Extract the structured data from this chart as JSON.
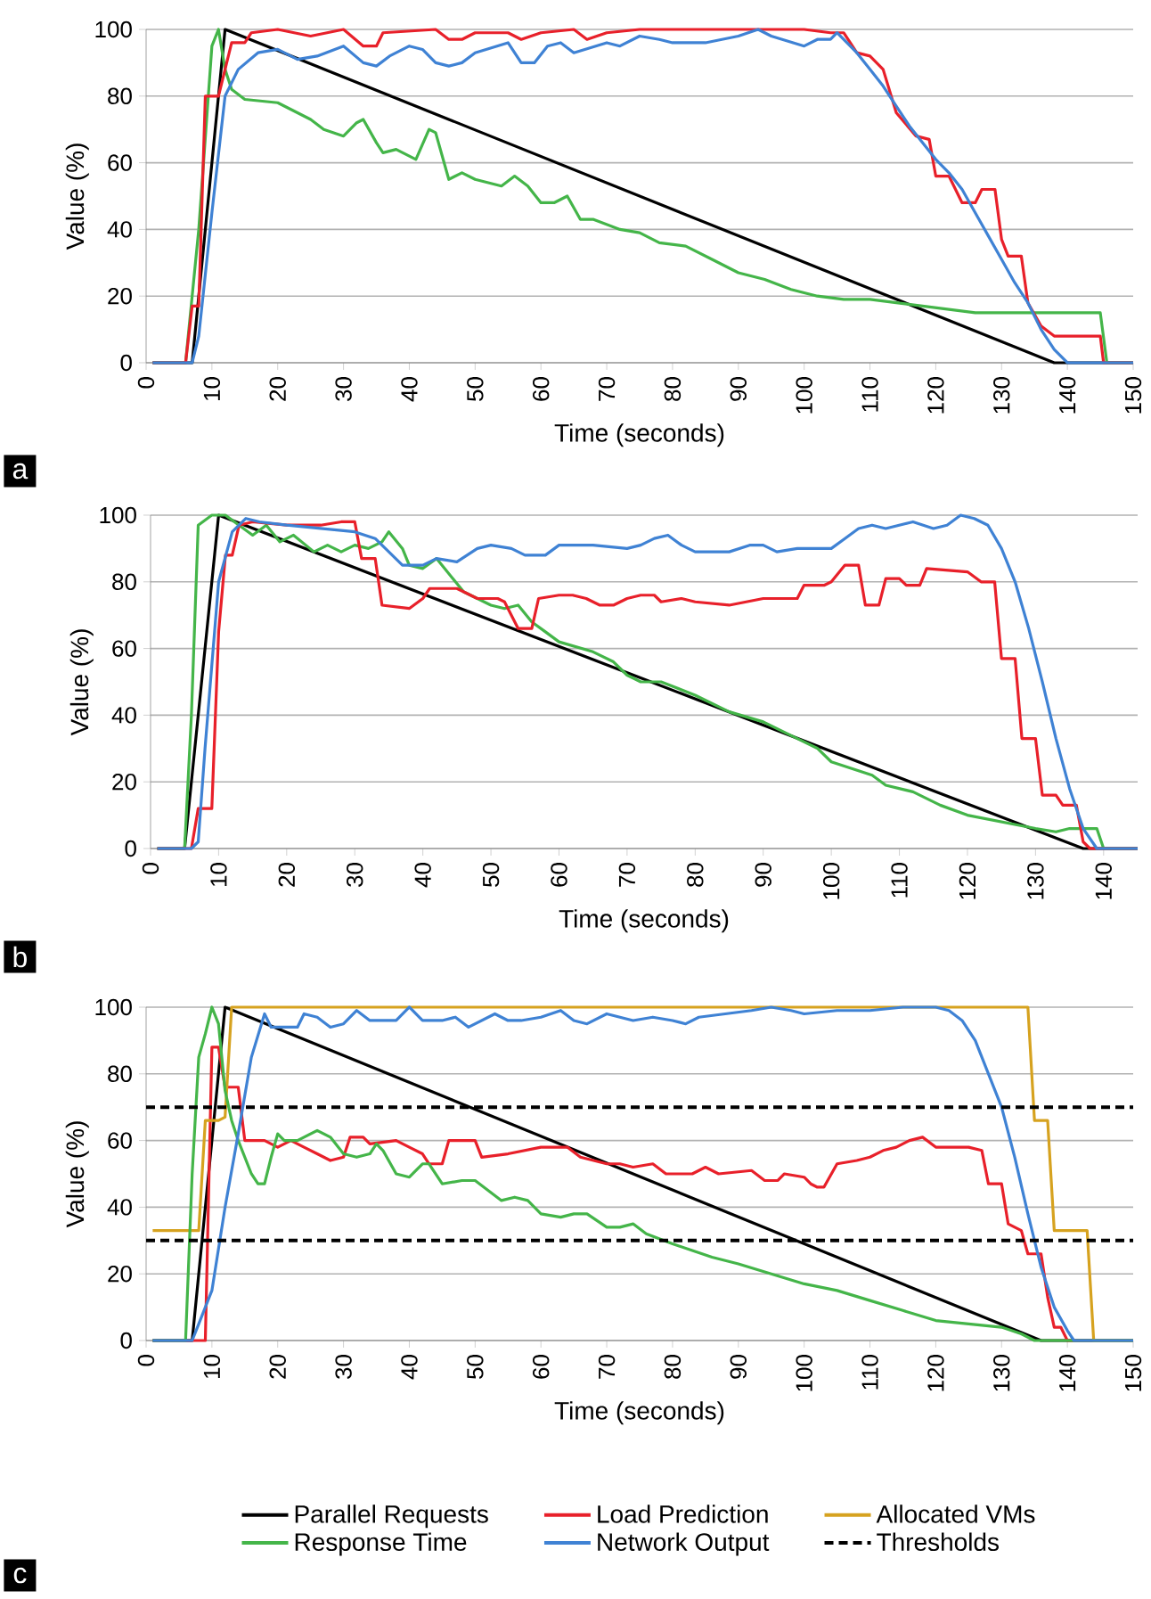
{
  "chart_data": [
    {
      "type": "line",
      "xlabel": "Time (seconds)",
      "ylabel": "Value (%)",
      "xlim": [
        0,
        150
      ],
      "ylim": [
        0,
        100
      ],
      "xticks": [
        0,
        10,
        20,
        30,
        40,
        50,
        60,
        70,
        80,
        90,
        100,
        110,
        120,
        130,
        140,
        150
      ],
      "yticks": [
        0,
        20,
        40,
        60,
        80,
        100
      ],
      "grid": "y",
      "annotations": [
        "a"
      ],
      "series": [
        {
          "color": "#000000",
          "x": [
            1,
            7,
            12,
            138,
            150
          ],
          "values": [
            0,
            0,
            100,
            0,
            0
          ]
        },
        {
          "color": "#44b549",
          "x": [
            1,
            6,
            8,
            10,
            11,
            12,
            13,
            15,
            20,
            23,
            25,
            27,
            30,
            32,
            33,
            35,
            36,
            38,
            41,
            43,
            44,
            46,
            48,
            50,
            54,
            56,
            58,
            60,
            62,
            64,
            66,
            68,
            72,
            75,
            78,
            82,
            86,
            90,
            94,
            98,
            102,
            106,
            110,
            114,
            118,
            122,
            126,
            130,
            135,
            145,
            146,
            150
          ],
          "values": [
            0,
            0,
            40,
            95,
            100,
            88,
            82,
            79,
            78,
            75,
            73,
            70,
            68,
            72,
            73,
            66,
            63,
            64,
            61,
            70,
            69,
            55,
            57,
            55,
            53,
            56,
            53,
            48,
            48,
            50,
            43,
            43,
            40,
            39,
            36,
            35,
            31,
            27,
            25,
            22,
            20,
            19,
            19,
            18,
            17,
            16,
            15,
            15,
            15,
            15,
            0,
            0
          ]
        },
        {
          "color": "#e8202a",
          "x": [
            1,
            6,
            7,
            8,
            9,
            11,
            13,
            15,
            16,
            20,
            25,
            30,
            33,
            35,
            36,
            44,
            46,
            48,
            50,
            55,
            57,
            60,
            65,
            67,
            70,
            75,
            100,
            104,
            106,
            108,
            110,
            112,
            114,
            117,
            119,
            120,
            122,
            124,
            126,
            127,
            129,
            130,
            131,
            133,
            134,
            136,
            138,
            145,
            145.5,
            150
          ],
          "values": [
            0,
            0,
            17,
            17,
            80,
            80,
            96,
            96,
            99,
            100,
            98,
            100,
            95,
            95,
            99,
            100,
            97,
            97,
            99,
            99,
            97,
            99,
            100,
            97,
            99,
            100,
            100,
            99,
            99,
            93,
            92,
            88,
            75,
            68,
            67,
            56,
            56,
            48,
            48,
            52,
            52,
            37,
            32,
            32,
            18,
            11,
            8,
            8,
            0,
            0
          ]
        },
        {
          "color": "#3f82d4",
          "x": [
            1,
            7,
            8,
            10,
            12,
            14,
            17,
            20,
            23,
            26,
            30,
            33,
            35,
            37,
            40,
            42,
            44,
            46,
            48,
            50,
            55,
            57,
            59,
            61,
            63,
            65,
            70,
            72,
            75,
            78,
            80,
            85,
            90,
            93,
            95,
            100,
            102,
            104,
            105,
            108,
            110,
            112,
            114,
            116,
            118,
            120,
            122,
            124,
            126,
            128,
            130,
            132,
            134,
            136,
            138,
            140,
            150
          ],
          "values": [
            0,
            0,
            8,
            45,
            80,
            88,
            93,
            94,
            91,
            92,
            95,
            90,
            89,
            92,
            95,
            94,
            90,
            89,
            90,
            93,
            96,
            90,
            90,
            95,
            96,
            93,
            96,
            95,
            98,
            97,
            96,
            96,
            98,
            100,
            98,
            95,
            97,
            97,
            99,
            93,
            88,
            83,
            77,
            71,
            66,
            61,
            57,
            52,
            45,
            38,
            31,
            24,
            18,
            10,
            4,
            0,
            0
          ]
        }
      ]
    },
    {
      "type": "line",
      "xlabel": "Time (seconds)",
      "ylabel": "Value (%)",
      "xlim": [
        0,
        145
      ],
      "ylim": [
        0,
        100
      ],
      "xticks": [
        0,
        10,
        20,
        30,
        40,
        50,
        60,
        70,
        80,
        90,
        100,
        110,
        120,
        130,
        140
      ],
      "yticks": [
        0,
        20,
        40,
        60,
        80,
        100
      ],
      "grid": "y",
      "annotations": [
        "b"
      ],
      "series": [
        {
          "color": "#000000",
          "x": [
            1,
            5,
            10,
            137,
            145
          ],
          "values": [
            0,
            0,
            100,
            0,
            0
          ]
        },
        {
          "color": "#44b549",
          "x": [
            1,
            5,
            6,
            7,
            9,
            11,
            13,
            15,
            17,
            19,
            21,
            24,
            26,
            28,
            30,
            32,
            34,
            35,
            37,
            38,
            40,
            42,
            44,
            46,
            50,
            52,
            54,
            56,
            58,
            60,
            65,
            68,
            70,
            72,
            75,
            80,
            85,
            90,
            95,
            98,
            100,
            103,
            106,
            108,
            112,
            116,
            120,
            125,
            130,
            133,
            135,
            139,
            140,
            145
          ],
          "values": [
            0,
            0,
            40,
            97,
            100,
            100,
            97,
            94,
            97,
            92,
            94,
            89,
            91,
            89,
            91,
            90,
            92,
            95,
            90,
            85,
            84,
            87,
            82,
            77,
            73,
            72,
            73,
            68,
            65,
            62,
            59,
            56,
            52,
            50,
            50,
            46,
            41,
            38,
            33,
            30,
            26,
            24,
            22,
            19,
            17,
            13,
            10,
            8,
            6,
            5,
            6,
            6,
            0,
            0
          ]
        },
        {
          "color": "#e8202a",
          "x": [
            1,
            6,
            7,
            9,
            10,
            11,
            12,
            13,
            15,
            20,
            25,
            28,
            30,
            31,
            33,
            34,
            38,
            40,
            41,
            45,
            48,
            51,
            52,
            54,
            56,
            57,
            60,
            62,
            64,
            66,
            68,
            70,
            72,
            74,
            75,
            78,
            80,
            85,
            90,
            95,
            96,
            99,
            100,
            102,
            104,
            105,
            107,
            108,
            110,
            111,
            113,
            114,
            120,
            122,
            124,
            125,
            127,
            128,
            130,
            131,
            133,
            134,
            136,
            137,
            138,
            145
          ],
          "values": [
            0,
            0,
            12,
            12,
            65,
            88,
            88,
            97,
            98,
            97,
            97,
            98,
            98,
            87,
            87,
            73,
            72,
            75,
            78,
            78,
            75,
            75,
            74,
            66,
            66,
            75,
            76,
            76,
            75,
            73,
            73,
            75,
            76,
            76,
            74,
            75,
            74,
            73,
            75,
            75,
            79,
            79,
            80,
            85,
            85,
            73,
            73,
            81,
            81,
            79,
            79,
            84,
            83,
            80,
            80,
            57,
            57,
            33,
            33,
            16,
            16,
            13,
            13,
            2,
            0,
            0
          ]
        },
        {
          "color": "#3f82d4",
          "x": [
            1,
            6,
            7,
            8,
            10,
            12,
            14,
            16,
            20,
            25,
            30,
            33,
            35,
            37,
            40,
            42,
            45,
            48,
            50,
            53,
            55,
            58,
            60,
            65,
            70,
            72,
            74,
            76,
            78,
            80,
            85,
            88,
            90,
            92,
            95,
            98,
            100,
            102,
            104,
            106,
            108,
            110,
            112,
            115,
            117,
            119,
            121,
            123,
            125,
            127,
            129,
            131,
            133,
            135,
            137,
            139,
            145
          ],
          "values": [
            0,
            0,
            2,
            30,
            80,
            95,
            99,
            98,
            97,
            96,
            95,
            93,
            89,
            85,
            85,
            87,
            86,
            90,
            91,
            90,
            88,
            88,
            91,
            91,
            90,
            91,
            93,
            94,
            91,
            89,
            89,
            91,
            91,
            89,
            90,
            90,
            90,
            93,
            96,
            97,
            96,
            97,
            98,
            96,
            97,
            100,
            99,
            97,
            90,
            80,
            66,
            50,
            33,
            18,
            6,
            0,
            0
          ]
        }
      ]
    },
    {
      "type": "line",
      "xlabel": "Time (seconds)",
      "ylabel": "Value (%)",
      "xlim": [
        0,
        150
      ],
      "ylim": [
        0,
        100
      ],
      "xticks": [
        0,
        10,
        20,
        30,
        40,
        50,
        60,
        70,
        80,
        90,
        100,
        110,
        120,
        130,
        140,
        150
      ],
      "yticks": [
        0,
        20,
        40,
        60,
        80,
        100
      ],
      "grid": "y",
      "legend": "bottom",
      "annotations": [
        "c"
      ],
      "series": [
        {
          "name": "Parallel Requests",
          "color": "#000000",
          "x": [
            1,
            7,
            12,
            136,
            150
          ],
          "values": [
            0,
            0,
            100,
            0,
            0
          ]
        },
        {
          "name": "Load Prediction",
          "color": "#e8202a",
          "x": [
            1,
            9,
            10,
            11,
            12,
            14,
            15,
            18,
            20,
            22,
            24,
            26,
            28,
            30,
            31,
            33,
            34,
            38,
            40,
            42,
            43,
            45,
            46,
            50,
            51,
            55,
            60,
            64,
            66,
            70,
            72,
            74,
            77,
            79,
            83,
            85,
            87,
            92,
            94,
            96,
            97,
            100,
            101,
            102,
            103,
            105,
            108,
            110,
            112,
            114,
            116,
            118,
            120,
            125,
            127,
            128,
            130,
            131,
            133,
            134,
            136,
            137,
            138,
            139,
            140,
            150
          ],
          "values": [
            0,
            0,
            88,
            88,
            76,
            76,
            60,
            60,
            58,
            60,
            58,
            56,
            54,
            55,
            61,
            61,
            59,
            60,
            58,
            56,
            53,
            53,
            60,
            60,
            55,
            56,
            58,
            58,
            55,
            53,
            53,
            52,
            53,
            50,
            50,
            52,
            50,
            51,
            48,
            48,
            50,
            49,
            47,
            46,
            46,
            53,
            54,
            55,
            57,
            58,
            60,
            61,
            58,
            58,
            57,
            47,
            47,
            35,
            33,
            26,
            26,
            13,
            4,
            4,
            0,
            0
          ]
        },
        {
          "name": "Allocated VMs",
          "color": "#d6a21f",
          "x": [
            1,
            8,
            9,
            11,
            12,
            13,
            134,
            135,
            137,
            138,
            143,
            144,
            150
          ],
          "values": [
            33,
            33,
            66,
            66,
            67,
            100,
            100,
            66,
            66,
            33,
            33,
            0,
            0
          ]
        },
        {
          "name": "Response Time",
          "color": "#44b549",
          "x": [
            1,
            6,
            7,
            8,
            9,
            10,
            11,
            12,
            13,
            14,
            16,
            17,
            18,
            19,
            20,
            21,
            23,
            25,
            26,
            28,
            30,
            32,
            34,
            35,
            36,
            38,
            40,
            42,
            43,
            45,
            48,
            50,
            52,
            54,
            56,
            58,
            60,
            63,
            65,
            67,
            70,
            72,
            74,
            76,
            80,
            83,
            86,
            90,
            95,
            100,
            105,
            110,
            115,
            120,
            125,
            130,
            133,
            135,
            150
          ],
          "values": [
            0,
            0,
            50,
            85,
            92,
            100,
            95,
            75,
            66,
            60,
            50,
            47,
            47,
            55,
            62,
            60,
            60,
            62,
            63,
            61,
            56,
            55,
            56,
            59,
            57,
            50,
            49,
            53,
            53,
            47,
            48,
            48,
            45,
            42,
            43,
            42,
            38,
            37,
            38,
            38,
            34,
            34,
            35,
            32,
            29,
            27,
            25,
            23,
            20,
            17,
            15,
            12,
            9,
            6,
            5,
            4,
            2,
            0,
            0
          ]
        },
        {
          "name": "Network Output",
          "color": "#3f82d4",
          "x": [
            1,
            7,
            8,
            10,
            12,
            14,
            16,
            18,
            19,
            21,
            23,
            24,
            26,
            28,
            30,
            32,
            34,
            36,
            38,
            40,
            42,
            45,
            47,
            49,
            51,
            53,
            55,
            57,
            60,
            63,
            65,
            67,
            70,
            74,
            77,
            80,
            82,
            84,
            88,
            92,
            95,
            98,
            100,
            105,
            110,
            115,
            120,
            122,
            124,
            126,
            128,
            130,
            132,
            134,
            136,
            138,
            140,
            141,
            150
          ],
          "values": [
            0,
            0,
            5,
            15,
            40,
            62,
            85,
            98,
            94,
            94,
            94,
            98,
            97,
            94,
            95,
            99,
            96,
            96,
            96,
            100,
            96,
            96,
            97,
            94,
            96,
            98,
            96,
            96,
            97,
            99,
            96,
            95,
            98,
            96,
            97,
            96,
            95,
            97,
            98,
            99,
            100,
            99,
            98,
            99,
            99,
            100,
            100,
            99,
            96,
            90,
            80,
            70,
            55,
            38,
            22,
            10,
            3,
            0,
            0
          ]
        }
      ],
      "ref_lines": [
        {
          "axis": "y",
          "value": 70,
          "label": "Thresholds",
          "color": "#000000",
          "line_style": "dashed"
        },
        {
          "axis": "y",
          "value": 30,
          "color": "#000000",
          "line_style": "dashed"
        }
      ]
    }
  ]
}
